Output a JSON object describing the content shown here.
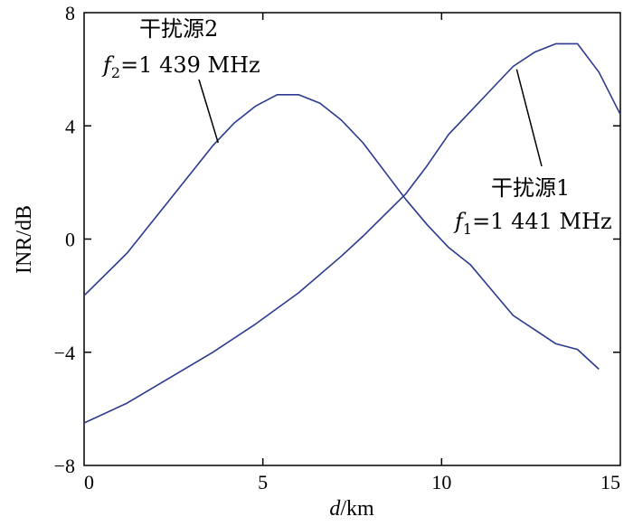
{
  "chart_data": {
    "type": "line",
    "xlabel_var": "d",
    "xlabel_unit": "/km",
    "ylabel": "INR/dB",
    "xlim": [
      0,
      15
    ],
    "ylim": [
      -8,
      8
    ],
    "xticks": [
      0,
      5,
      10,
      15
    ],
    "yticks": [
      -8,
      -4,
      0,
      4,
      8
    ],
    "ytick_labels": [
      "−8",
      "−4",
      "0",
      "4",
      "8"
    ],
    "grid": false,
    "line_color": "#2b3990",
    "series": [
      {
        "name": "干扰源1",
        "x": [
          0,
          1.2,
          2.4,
          3.6,
          4.8,
          6.0,
          7.2,
          7.8,
          9.0,
          9.6,
          10.2,
          10.8,
          11.4,
          12.0,
          12.6,
          13.2,
          13.8,
          14.4,
          15.0
        ],
        "y": [
          -6.5,
          -5.8,
          -4.9,
          -4.0,
          -3.0,
          -1.9,
          -0.6,
          0.1,
          1.6,
          2.6,
          3.7,
          4.5,
          5.3,
          6.1,
          6.6,
          6.9,
          6.9,
          5.9,
          4.4
        ]
      },
      {
        "name": "干扰源2",
        "x": [
          0,
          1.2,
          2.4,
          3.6,
          4.2,
          4.8,
          5.4,
          6.0,
          6.6,
          7.2,
          7.8,
          9.0,
          9.6,
          10.2,
          10.8,
          11.4,
          12.0,
          12.6,
          13.2,
          13.8,
          14.4
        ],
        "y": [
          -2.0,
          -0.5,
          1.4,
          3.3,
          4.1,
          4.7,
          5.1,
          5.1,
          4.8,
          4.2,
          3.4,
          1.4,
          0.5,
          -0.3,
          -0.9,
          -1.8,
          -2.7,
          -3.2,
          -3.7,
          -3.9,
          -4.6
        ]
      }
    ],
    "annotations": [
      {
        "series": 1,
        "title": "干扰源2",
        "var": "f",
        "sub": "2",
        "value": "=1 439 MHz",
        "point_x": 3.75,
        "point_y": 3.4
      },
      {
        "series": 0,
        "title": "干扰源1",
        "var": "f",
        "sub": "1",
        "value": "=1 441 MHz",
        "point_x": 12.1,
        "point_y": 6.0
      }
    ]
  }
}
